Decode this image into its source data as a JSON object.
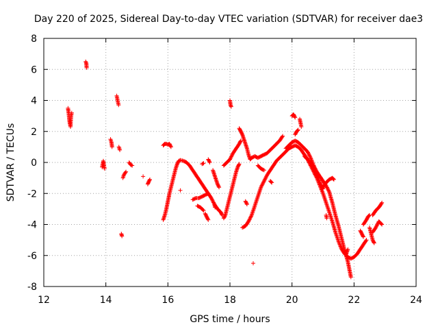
{
  "chart_data": {
    "type": "scatter",
    "title": "Day 220 of 2025, Sidereal Day-to-day VTEC variation (SDTVAR) for receiver dae3",
    "xlabel": "GPS time / hours",
    "ylabel": "SDTVAR / TECUs",
    "xlim": [
      12,
      24
    ],
    "ylim": [
      -8,
      8
    ],
    "xticks": [
      "12",
      "14",
      "16",
      "18",
      "20",
      "22",
      "24"
    ],
    "yticks": [
      "-8",
      "-6",
      "-4",
      "-2",
      "0",
      "2",
      "4",
      "6",
      "8"
    ],
    "grid": true,
    "marker": "plus",
    "color": "#ff0000",
    "series": [
      {
        "name": "SDTVAR",
        "segments": [
          [
            [
              12.78,
              3.5
            ],
            [
              12.8,
              3.2
            ],
            [
              12.82,
              2.8
            ],
            [
              12.84,
              2.5
            ],
            [
              12.86,
              2.3
            ],
            [
              12.88,
              3.0
            ],
            [
              12.9,
              3.2
            ]
          ],
          [
            [
              13.35,
              6.5
            ],
            [
              13.37,
              6.4
            ],
            [
              13.38,
              6.1
            ]
          ],
          [
            [
              13.88,
              -0.3
            ],
            [
              13.9,
              -0.1
            ],
            [
              13.92,
              0.1
            ],
            [
              13.94,
              -0.2
            ],
            [
              13.96,
              -0.4
            ]
          ],
          [
            [
              14.15,
              1.5
            ],
            [
              14.18,
              1.3
            ],
            [
              14.2,
              1.0
            ]
          ],
          [
            [
              14.35,
              4.3
            ],
            [
              14.37,
              4.1
            ],
            [
              14.39,
              3.9
            ],
            [
              14.41,
              3.7
            ]
          ],
          [
            [
              14.42,
              1.0
            ],
            [
              14.45,
              0.8
            ]
          ],
          [
            [
              14.5,
              -4.6
            ],
            [
              14.52,
              -4.75
            ]
          ],
          [
            [
              14.55,
              -1.0
            ],
            [
              14.58,
              -0.8
            ],
            [
              14.65,
              -0.6
            ]
          ],
          [
            [
              14.75,
              0.0
            ],
            [
              14.8,
              -0.15
            ],
            [
              14.85,
              -0.2
            ]
          ],
          [
            [
              15.2,
              -0.9
            ]
          ],
          [
            [
              15.35,
              -1.4
            ],
            [
              15.38,
              -1.25
            ],
            [
              15.42,
              -1.1
            ]
          ],
          [
            [
              15.85,
              1.1
            ],
            [
              15.9,
              1.2
            ],
            [
              15.95,
              1.2
            ],
            [
              16.0,
              1.15
            ],
            [
              16.05,
              1.2
            ],
            [
              16.1,
              1.0
            ]
          ],
          [
            [
              15.85,
              -3.7
            ],
            [
              15.9,
              -3.4
            ],
            [
              15.95,
              -3.0
            ],
            [
              16.0,
              -2.5
            ],
            [
              16.05,
              -2.0
            ],
            [
              16.1,
              -1.6
            ],
            [
              16.15,
              -1.2
            ],
            [
              16.2,
              -0.8
            ],
            [
              16.25,
              -0.4
            ],
            [
              16.3,
              -0.1
            ],
            [
              16.35,
              0.1
            ],
            [
              16.4,
              0.15
            ],
            [
              16.5,
              0.1
            ],
            [
              16.6,
              0.0
            ],
            [
              16.7,
              -0.2
            ],
            [
              16.8,
              -0.5
            ],
            [
              16.9,
              -0.8
            ],
            [
              17.0,
              -1.1
            ],
            [
              17.1,
              -1.4
            ],
            [
              17.2,
              -1.7
            ],
            [
              17.3,
              -2.0
            ],
            [
              17.4,
              -2.3
            ],
            [
              17.5,
              -2.7
            ],
            [
              17.6,
              -3.0
            ],
            [
              17.7,
              -3.2
            ],
            [
              17.75,
              -3.4
            ]
          ],
          [
            [
              16.4,
              -1.8
            ]
          ],
          [
            [
              16.8,
              -2.4
            ],
            [
              16.9,
              -2.3
            ],
            [
              17.0,
              -2.3
            ],
            [
              17.1,
              -2.2
            ],
            [
              17.2,
              -2.1
            ],
            [
              17.3,
              -2.0
            ]
          ],
          [
            [
              16.95,
              -2.8
            ],
            [
              17.05,
              -2.9
            ],
            [
              17.15,
              -3.1
            ]
          ],
          [
            [
              17.2,
              -3.3
            ],
            [
              17.25,
              -3.5
            ],
            [
              17.3,
              -3.7
            ]
          ],
          [
            [
              17.1,
              -0.1
            ],
            [
              17.15,
              -0.05
            ]
          ],
          [
            [
              17.45,
              -0.5
            ],
            [
              17.5,
              -0.8
            ],
            [
              17.55,
              -1.1
            ],
            [
              17.6,
              -1.4
            ],
            [
              17.65,
              -1.6
            ]
          ],
          [
            [
              17.3,
              0.2
            ],
            [
              17.35,
              0.0
            ]
          ],
          [
            [
              17.5,
              -2.7
            ],
            [
              17.52,
              -2.9
            ]
          ],
          [
            [
              17.8,
              -3.6
            ],
            [
              17.85,
              -3.4
            ],
            [
              17.9,
              -3.0
            ],
            [
              17.95,
              -2.6
            ],
            [
              18.0,
              -2.2
            ],
            [
              18.05,
              -1.8
            ],
            [
              18.1,
              -1.4
            ],
            [
              18.15,
              -1.0
            ],
            [
              18.2,
              -0.6
            ],
            [
              18.25,
              -0.3
            ],
            [
              18.3,
              -0.1
            ]
          ],
          [
            [
              18.0,
              4.0
            ],
            [
              18.02,
              3.7
            ],
            [
              18.04,
              3.6
            ]
          ],
          [
            [
              17.8,
              -0.2
            ],
            [
              17.9,
              0.0
            ],
            [
              18.0,
              0.2
            ],
            [
              18.1,
              0.6
            ],
            [
              18.2,
              0.9
            ],
            [
              18.3,
              1.2
            ],
            [
              18.35,
              1.4
            ]
          ],
          [
            [
              18.3,
              2.2
            ],
            [
              18.35,
              2.0
            ],
            [
              18.4,
              1.8
            ],
            [
              18.45,
              1.5
            ],
            [
              18.5,
              1.2
            ],
            [
              18.55,
              0.9
            ],
            [
              18.6,
              0.5
            ],
            [
              18.65,
              0.2
            ],
            [
              18.7,
              0.3
            ],
            [
              18.8,
              0.4
            ],
            [
              18.9,
              0.3
            ],
            [
              19.0,
              0.4
            ],
            [
              19.1,
              0.5
            ],
            [
              19.2,
              0.6
            ],
            [
              19.3,
              0.8
            ],
            [
              19.4,
              1.0
            ],
            [
              19.5,
              1.2
            ],
            [
              19.6,
              1.4
            ],
            [
              19.7,
              1.7
            ]
          ],
          [
            [
              18.5,
              -2.5
            ],
            [
              18.55,
              -2.7
            ]
          ],
          [
            [
              18.4,
              -4.2
            ],
            [
              18.5,
              -4.1
            ],
            [
              18.6,
              -3.8
            ],
            [
              18.7,
              -3.4
            ],
            [
              18.8,
              -2.8
            ],
            [
              18.9,
              -2.2
            ],
            [
              19.0,
              -1.6
            ],
            [
              19.1,
              -1.2
            ],
            [
              19.2,
              -0.8
            ],
            [
              19.3,
              -0.5
            ],
            [
              19.4,
              -0.2
            ],
            [
              19.5,
              0.1
            ],
            [
              19.6,
              0.3
            ],
            [
              19.7,
              0.5
            ],
            [
              19.8,
              0.7
            ],
            [
              19.9,
              0.9
            ],
            [
              20.0,
              1.0
            ],
            [
              20.1,
              1.1
            ],
            [
              20.2,
              1.0
            ],
            [
              20.3,
              0.8
            ],
            [
              20.4,
              0.5
            ],
            [
              20.5,
              0.2
            ],
            [
              20.6,
              -0.2
            ],
            [
              20.7,
              -0.6
            ],
            [
              20.8,
              -1.0
            ],
            [
              20.9,
              -1.5
            ],
            [
              21.0,
              -2.0
            ],
            [
              21.1,
              -2.6
            ],
            [
              21.2,
              -3.2
            ],
            [
              21.3,
              -3.8
            ],
            [
              21.4,
              -4.5
            ],
            [
              21.5,
              -5.1
            ],
            [
              21.6,
              -5.6
            ],
            [
              21.7,
              -5.9
            ],
            [
              21.8,
              -6.1
            ],
            [
              21.9,
              -6.2
            ],
            [
              22.0,
              -6.1
            ],
            [
              22.1,
              -5.9
            ],
            [
              22.2,
              -5.6
            ],
            [
              22.3,
              -5.3
            ],
            [
              22.4,
              -5.0
            ]
          ],
          [
            [
              18.75,
              -6.5
            ]
          ],
          [
            [
              18.9,
              -0.2
            ],
            [
              19.0,
              -0.4
            ],
            [
              19.1,
              -0.5
            ]
          ],
          [
            [
              19.3,
              -1.2
            ],
            [
              19.35,
              -1.3
            ]
          ],
          [
            [
              19.8,
              0.9
            ],
            [
              19.9,
              1.1
            ],
            [
              20.0,
              1.3
            ],
            [
              20.1,
              1.4
            ],
            [
              20.2,
              1.3
            ],
            [
              20.3,
              1.1
            ],
            [
              20.4,
              0.9
            ],
            [
              20.5,
              0.7
            ],
            [
              20.6,
              0.3
            ],
            [
              20.7,
              -0.2
            ],
            [
              20.8,
              -0.6
            ],
            [
              20.9,
              -0.9
            ],
            [
              21.0,
              -1.2
            ],
            [
              21.1,
              -1.5
            ],
            [
              21.2,
              -1.9
            ],
            [
              21.3,
              -2.6
            ],
            [
              21.4,
              -3.4
            ],
            [
              21.5,
              -4.1
            ],
            [
              21.6,
              -4.9
            ],
            [
              21.7,
              -5.7
            ],
            [
              21.8,
              -6.4
            ],
            [
              21.85,
              -6.9
            ],
            [
              21.9,
              -7.4
            ]
          ],
          [
            [
              20.0,
              3.0
            ],
            [
              20.05,
              3.1
            ],
            [
              20.1,
              2.9
            ]
          ],
          [
            [
              20.1,
              1.8
            ],
            [
              20.15,
              2.0
            ],
            [
              20.2,
              2.1
            ]
          ],
          [
            [
              20.25,
              2.8
            ],
            [
              20.28,
              2.5
            ],
            [
              20.3,
              2.3
            ]
          ],
          [
            [
              20.4,
              0.4
            ],
            [
              20.5,
              0.2
            ],
            [
              20.6,
              0.0
            ],
            [
              20.7,
              -0.3
            ],
            [
              20.8,
              -0.8
            ],
            [
              20.9,
              -1.3
            ],
            [
              21.0,
              -1.7
            ]
          ],
          [
            [
              21.0,
              -1.6
            ],
            [
              21.1,
              -1.3
            ],
            [
              21.2,
              -1.1
            ],
            [
              21.3,
              -1.0
            ],
            [
              21.35,
              -1.1
            ]
          ],
          [
            [
              21.1,
              -3.4
            ],
            [
              21.12,
              -3.6
            ]
          ],
          [
            [
              21.7,
              -5.7
            ],
            [
              21.75,
              -5.9
            ],
            [
              21.8,
              -5.6
            ]
          ],
          [
            [
              22.2,
              -4.4
            ],
            [
              22.25,
              -4.6
            ],
            [
              22.3,
              -4.8
            ]
          ],
          [
            [
              22.3,
              -4.0
            ],
            [
              22.4,
              -3.7
            ],
            [
              22.45,
              -3.5
            ],
            [
              22.5,
              -3.4
            ]
          ],
          [
            [
              22.5,
              -4.2
            ],
            [
              22.55,
              -4.6
            ],
            [
              22.6,
              -5.0
            ],
            [
              22.65,
              -5.2
            ]
          ],
          [
            [
              22.6,
              -4.5
            ],
            [
              22.7,
              -4.2
            ],
            [
              22.8,
              -3.8
            ],
            [
              22.9,
              -4.0
            ]
          ],
          [
            [
              22.6,
              -3.4
            ],
            [
              22.7,
              -3.1
            ],
            [
              22.8,
              -2.9
            ],
            [
              22.9,
              -2.6
            ]
          ]
        ]
      }
    ]
  }
}
